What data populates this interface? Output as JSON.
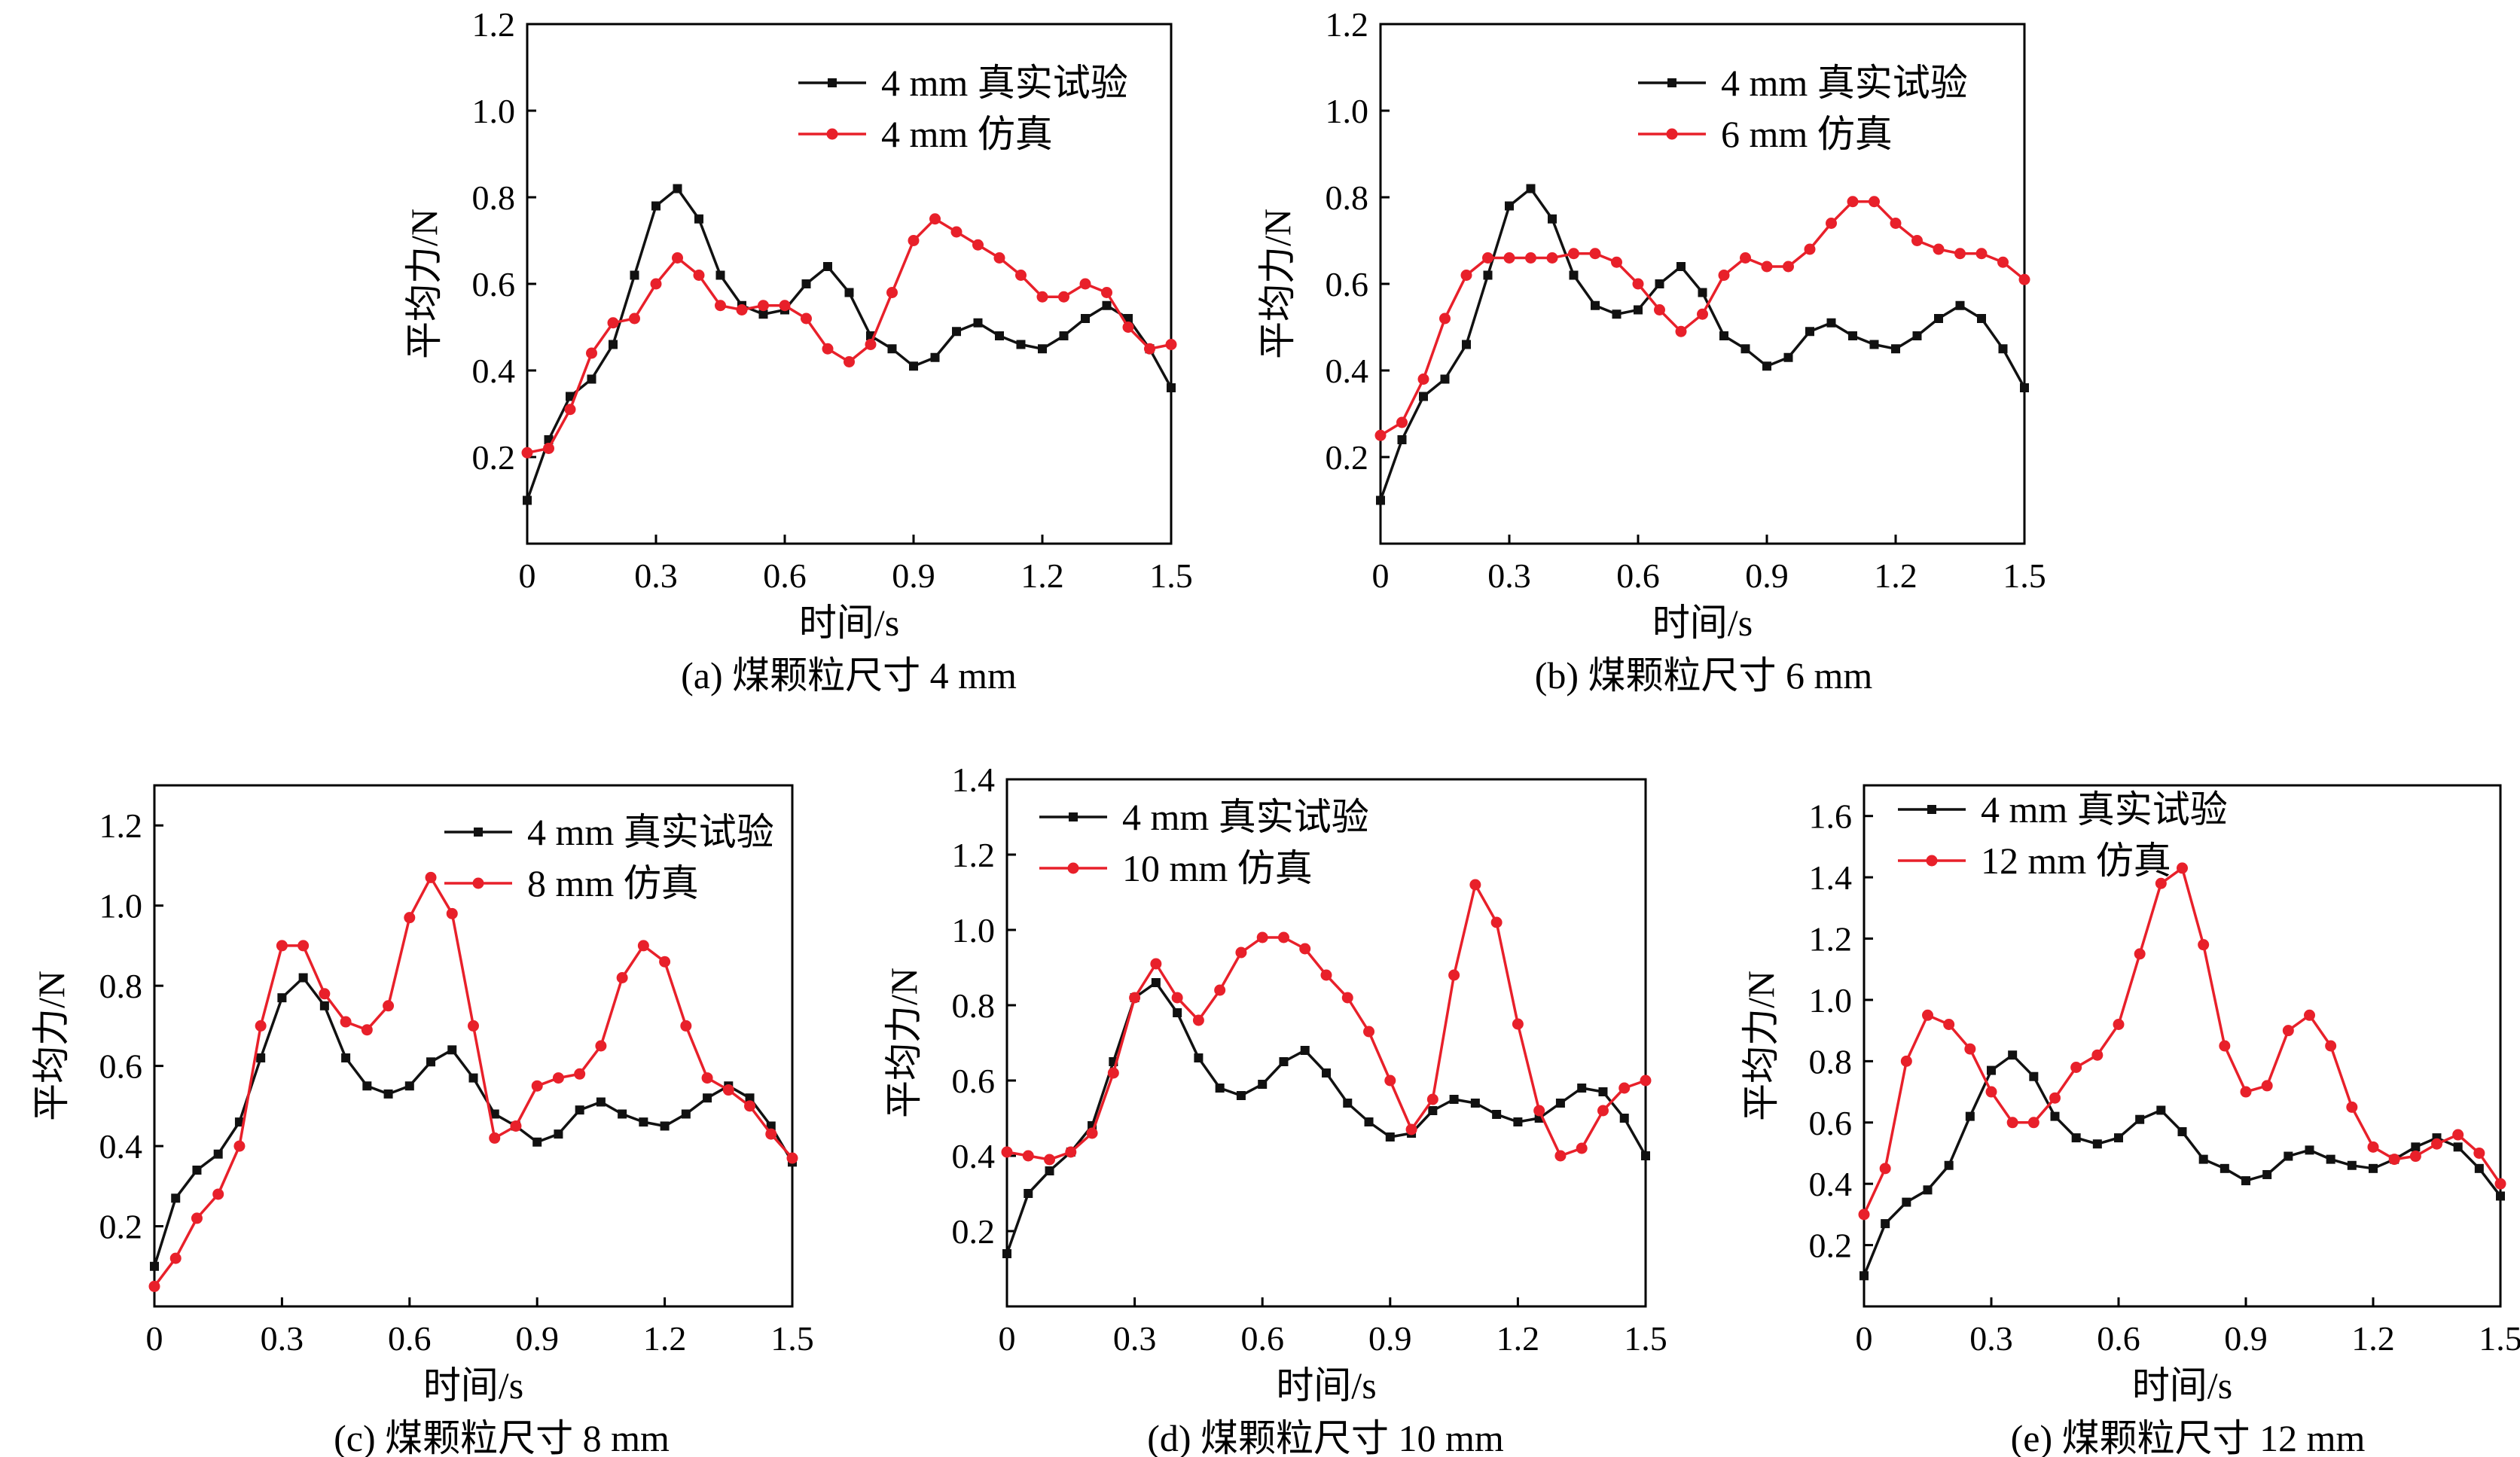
{
  "colors": {
    "real": "#111111",
    "sim": "#e8202a"
  },
  "chart_data": [
    {
      "type": "line",
      "caption": "(a) 煤颗粒尺寸 4 mm",
      "xlabel": "时间/s",
      "ylabel": "平均力/N",
      "xlim": [
        0,
        1.5
      ],
      "ylim": [
        0,
        1.2
      ],
      "x_ticks": [
        0,
        0.3,
        0.6,
        0.9,
        1.2,
        1.5
      ],
      "x_tick_labels": [
        "0",
        "0.3",
        "0.6",
        "0.9",
        "1.2",
        "1.5"
      ],
      "y_ticks": [
        0.2,
        0.4,
        0.6,
        0.8,
        1.0,
        1.2
      ],
      "y_tick_labels": [
        "0.2",
        "0.4",
        "0.6",
        "0.8",
        "1.0",
        "1.2"
      ],
      "legend_position": "top-right",
      "series": [
        {
          "name": "4 mm 真实试验",
          "color": "#111111",
          "marker": "square",
          "x": [
            0,
            0.05,
            0.1,
            0.15,
            0.2,
            0.25,
            0.3,
            0.35,
            0.4,
            0.45,
            0.5,
            0.55,
            0.6,
            0.65,
            0.7,
            0.75,
            0.8,
            0.85,
            0.9,
            0.95,
            1.0,
            1.05,
            1.1,
            1.15,
            1.2,
            1.25,
            1.3,
            1.35,
            1.4,
            1.45,
            1.5
          ],
          "y": [
            0.1,
            0.24,
            0.34,
            0.38,
            0.46,
            0.62,
            0.78,
            0.82,
            0.75,
            0.62,
            0.55,
            0.53,
            0.54,
            0.6,
            0.64,
            0.58,
            0.48,
            0.45,
            0.41,
            0.43,
            0.49,
            0.51,
            0.48,
            0.46,
            0.45,
            0.48,
            0.52,
            0.55,
            0.52,
            0.45,
            0.36
          ]
        },
        {
          "name": "4 mm 仿真",
          "color": "#e8202a",
          "marker": "circle",
          "x": [
            0,
            0.05,
            0.1,
            0.15,
            0.2,
            0.25,
            0.3,
            0.35,
            0.4,
            0.45,
            0.5,
            0.55,
            0.6,
            0.65,
            0.7,
            0.75,
            0.8,
            0.85,
            0.9,
            0.95,
            1.0,
            1.05,
            1.1,
            1.15,
            1.2,
            1.25,
            1.3,
            1.35,
            1.4,
            1.45,
            1.5
          ],
          "y": [
            0.21,
            0.22,
            0.31,
            0.44,
            0.51,
            0.52,
            0.6,
            0.66,
            0.62,
            0.55,
            0.54,
            0.55,
            0.55,
            0.52,
            0.45,
            0.42,
            0.46,
            0.58,
            0.7,
            0.75,
            0.72,
            0.69,
            0.66,
            0.62,
            0.57,
            0.57,
            0.6,
            0.58,
            0.5,
            0.45,
            0.46
          ]
        }
      ]
    },
    {
      "type": "line",
      "caption": "(b) 煤颗粒尺寸 6 mm",
      "xlabel": "时间/s",
      "ylabel": "平均力/N",
      "xlim": [
        0,
        1.5
      ],
      "ylim": [
        0,
        1.2
      ],
      "x_ticks": [
        0,
        0.3,
        0.6,
        0.9,
        1.2,
        1.5
      ],
      "x_tick_labels": [
        "0",
        "0.3",
        "0.6",
        "0.9",
        "1.2",
        "1.5"
      ],
      "y_ticks": [
        0.2,
        0.4,
        0.6,
        0.8,
        1.0,
        1.2
      ],
      "y_tick_labels": [
        "0.2",
        "0.4",
        "0.6",
        "0.8",
        "1.0",
        "1.2"
      ],
      "legend_position": "top-right",
      "series": [
        {
          "name": "4 mm 真实试验",
          "color": "#111111",
          "marker": "square",
          "x": [
            0,
            0.05,
            0.1,
            0.15,
            0.2,
            0.25,
            0.3,
            0.35,
            0.4,
            0.45,
            0.5,
            0.55,
            0.6,
            0.65,
            0.7,
            0.75,
            0.8,
            0.85,
            0.9,
            0.95,
            1.0,
            1.05,
            1.1,
            1.15,
            1.2,
            1.25,
            1.3,
            1.35,
            1.4,
            1.45,
            1.5
          ],
          "y": [
            0.1,
            0.24,
            0.34,
            0.38,
            0.46,
            0.62,
            0.78,
            0.82,
            0.75,
            0.62,
            0.55,
            0.53,
            0.54,
            0.6,
            0.64,
            0.58,
            0.48,
            0.45,
            0.41,
            0.43,
            0.49,
            0.51,
            0.48,
            0.46,
            0.45,
            0.48,
            0.52,
            0.55,
            0.52,
            0.45,
            0.36
          ]
        },
        {
          "name": "6 mm 仿真",
          "color": "#e8202a",
          "marker": "circle",
          "x": [
            0,
            0.05,
            0.1,
            0.15,
            0.2,
            0.25,
            0.3,
            0.35,
            0.4,
            0.45,
            0.5,
            0.55,
            0.6,
            0.65,
            0.7,
            0.75,
            0.8,
            0.85,
            0.9,
            0.95,
            1.0,
            1.05,
            1.1,
            1.15,
            1.2,
            1.25,
            1.3,
            1.35,
            1.4,
            1.45,
            1.5
          ],
          "y": [
            0.25,
            0.28,
            0.38,
            0.52,
            0.62,
            0.66,
            0.66,
            0.66,
            0.66,
            0.67,
            0.67,
            0.65,
            0.6,
            0.54,
            0.49,
            0.53,
            0.62,
            0.66,
            0.64,
            0.64,
            0.68,
            0.74,
            0.79,
            0.79,
            0.74,
            0.7,
            0.68,
            0.67,
            0.67,
            0.65,
            0.61
          ]
        }
      ]
    },
    {
      "type": "line",
      "caption": "(c) 煤颗粒尺寸 8 mm",
      "xlabel": "时间/s",
      "ylabel": "平均力/N",
      "xlim": [
        0,
        1.5
      ],
      "ylim": [
        0,
        1.3
      ],
      "x_ticks": [
        0,
        0.3,
        0.6,
        0.9,
        1.2,
        1.5
      ],
      "x_tick_labels": [
        "0",
        "0.3",
        "0.6",
        "0.9",
        "1.2",
        "1.5"
      ],
      "y_ticks": [
        0.2,
        0.4,
        0.6,
        0.8,
        1.0,
        1.2
      ],
      "y_tick_labels": [
        "0.2",
        "0.4",
        "0.6",
        "0.8",
        "1.0",
        "1.2"
      ],
      "legend_position": "top-right",
      "series": [
        {
          "name": "4 mm 真实试验",
          "color": "#111111",
          "marker": "square",
          "x": [
            0,
            0.05,
            0.1,
            0.15,
            0.2,
            0.25,
            0.3,
            0.35,
            0.4,
            0.45,
            0.5,
            0.55,
            0.6,
            0.65,
            0.7,
            0.75,
            0.8,
            0.85,
            0.9,
            0.95,
            1.0,
            1.05,
            1.1,
            1.15,
            1.2,
            1.25,
            1.3,
            1.35,
            1.4,
            1.45,
            1.5
          ],
          "y": [
            0.1,
            0.27,
            0.34,
            0.38,
            0.46,
            0.62,
            0.77,
            0.82,
            0.75,
            0.62,
            0.55,
            0.53,
            0.55,
            0.61,
            0.64,
            0.57,
            0.48,
            0.45,
            0.41,
            0.43,
            0.49,
            0.51,
            0.48,
            0.46,
            0.45,
            0.48,
            0.52,
            0.55,
            0.52,
            0.45,
            0.36
          ]
        },
        {
          "name": "8 mm 仿真",
          "color": "#e8202a",
          "marker": "circle",
          "x": [
            0,
            0.05,
            0.1,
            0.15,
            0.2,
            0.25,
            0.3,
            0.35,
            0.4,
            0.45,
            0.5,
            0.55,
            0.6,
            0.65,
            0.7,
            0.75,
            0.8,
            0.85,
            0.9,
            0.95,
            1.0,
            1.05,
            1.1,
            1.15,
            1.2,
            1.25,
            1.3,
            1.35,
            1.4,
            1.45,
            1.5
          ],
          "y": [
            0.05,
            0.12,
            0.22,
            0.28,
            0.4,
            0.7,
            0.9,
            0.9,
            0.78,
            0.71,
            0.69,
            0.75,
            0.97,
            1.07,
            0.98,
            0.7,
            0.42,
            0.45,
            0.55,
            0.57,
            0.58,
            0.65,
            0.82,
            0.9,
            0.86,
            0.7,
            0.57,
            0.54,
            0.5,
            0.43,
            0.37
          ]
        }
      ]
    },
    {
      "type": "line",
      "caption": "(d) 煤颗粒尺寸 10 mm",
      "xlabel": "时间/s",
      "ylabel": "平均力/N",
      "xlim": [
        0,
        1.5
      ],
      "ylim": [
        0,
        1.4
      ],
      "x_ticks": [
        0,
        0.3,
        0.6,
        0.9,
        1.2,
        1.5
      ],
      "x_tick_labels": [
        "0",
        "0.3",
        "0.6",
        "0.9",
        "1.2",
        "1.5"
      ],
      "y_ticks": [
        0.2,
        0.4,
        0.6,
        0.8,
        1.0,
        1.2,
        1.4
      ],
      "y_tick_labels": [
        "0.2",
        "0.4",
        "0.6",
        "0.8",
        "1.0",
        "1.2",
        "1.4"
      ],
      "legend_position": "top-left",
      "series": [
        {
          "name": "4 mm 真实试验",
          "color": "#111111",
          "marker": "square",
          "x": [
            0,
            0.05,
            0.1,
            0.15,
            0.2,
            0.25,
            0.3,
            0.35,
            0.4,
            0.45,
            0.5,
            0.55,
            0.6,
            0.65,
            0.7,
            0.75,
            0.8,
            0.85,
            0.9,
            0.95,
            1.0,
            1.05,
            1.1,
            1.15,
            1.2,
            1.25,
            1.3,
            1.35,
            1.4,
            1.45,
            1.5
          ],
          "y": [
            0.14,
            0.3,
            0.36,
            0.41,
            0.48,
            0.65,
            0.82,
            0.86,
            0.78,
            0.66,
            0.58,
            0.56,
            0.59,
            0.65,
            0.68,
            0.62,
            0.54,
            0.49,
            0.45,
            0.46,
            0.52,
            0.55,
            0.54,
            0.51,
            0.49,
            0.5,
            0.54,
            0.58,
            0.57,
            0.5,
            0.4
          ]
        },
        {
          "name": "10 mm 仿真",
          "color": "#e8202a",
          "marker": "circle",
          "x": [
            0,
            0.05,
            0.1,
            0.15,
            0.2,
            0.25,
            0.3,
            0.35,
            0.4,
            0.45,
            0.5,
            0.55,
            0.6,
            0.65,
            0.7,
            0.75,
            0.8,
            0.85,
            0.9,
            0.95,
            1.0,
            1.05,
            1.1,
            1.15,
            1.2,
            1.25,
            1.3,
            1.35,
            1.4,
            1.45,
            1.5
          ],
          "y": [
            0.41,
            0.4,
            0.39,
            0.41,
            0.46,
            0.62,
            0.82,
            0.91,
            0.82,
            0.76,
            0.84,
            0.94,
            0.98,
            0.98,
            0.95,
            0.88,
            0.82,
            0.73,
            0.6,
            0.47,
            0.55,
            0.88,
            1.12,
            1.02,
            0.75,
            0.52,
            0.4,
            0.42,
            0.52,
            0.58,
            0.6
          ]
        }
      ]
    },
    {
      "type": "line",
      "caption": "(e) 煤颗粒尺寸 12 mm",
      "xlabel": "时间/s",
      "ylabel": "平均力/N",
      "xlim": [
        0,
        1.5
      ],
      "ylim": [
        0,
        1.7
      ],
      "x_ticks": [
        0,
        0.3,
        0.6,
        0.9,
        1.2,
        1.5
      ],
      "x_tick_labels": [
        "0",
        "0.3",
        "0.6",
        "0.9",
        "1.2",
        "1.5"
      ],
      "y_ticks": [
        0.2,
        0.4,
        0.6,
        0.8,
        1.0,
        1.2,
        1.4,
        1.6
      ],
      "y_tick_labels": [
        "0.2",
        "0.4",
        "0.6",
        "0.8",
        "1.0",
        "1.2",
        "1.4",
        "1.6"
      ],
      "legend_position": "top-left",
      "series": [
        {
          "name": "4 mm 真实试验",
          "color": "#111111",
          "marker": "square",
          "x": [
            0,
            0.05,
            0.1,
            0.15,
            0.2,
            0.25,
            0.3,
            0.35,
            0.4,
            0.45,
            0.5,
            0.55,
            0.6,
            0.65,
            0.7,
            0.75,
            0.8,
            0.85,
            0.9,
            0.95,
            1.0,
            1.05,
            1.1,
            1.15,
            1.2,
            1.25,
            1.3,
            1.35,
            1.4,
            1.45,
            1.5
          ],
          "y": [
            0.1,
            0.27,
            0.34,
            0.38,
            0.46,
            0.62,
            0.77,
            0.82,
            0.75,
            0.62,
            0.55,
            0.53,
            0.55,
            0.61,
            0.64,
            0.57,
            0.48,
            0.45,
            0.41,
            0.43,
            0.49,
            0.51,
            0.48,
            0.46,
            0.45,
            0.48,
            0.52,
            0.55,
            0.52,
            0.45,
            0.36
          ]
        },
        {
          "name": "12 mm 仿真",
          "color": "#e8202a",
          "marker": "circle",
          "x": [
            0,
            0.05,
            0.1,
            0.15,
            0.2,
            0.25,
            0.3,
            0.35,
            0.4,
            0.45,
            0.5,
            0.55,
            0.6,
            0.65,
            0.7,
            0.75,
            0.8,
            0.85,
            0.9,
            0.95,
            1.0,
            1.05,
            1.1,
            1.15,
            1.2,
            1.25,
            1.3,
            1.35,
            1.4,
            1.45,
            1.5
          ],
          "y": [
            0.3,
            0.45,
            0.8,
            0.95,
            0.92,
            0.84,
            0.7,
            0.6,
            0.6,
            0.68,
            0.78,
            0.82,
            0.92,
            1.15,
            1.38,
            1.43,
            1.18,
            0.85,
            0.7,
            0.72,
            0.9,
            0.95,
            0.85,
            0.65,
            0.52,
            0.48,
            0.49,
            0.53,
            0.56,
            0.5,
            0.4
          ]
        }
      ]
    }
  ]
}
